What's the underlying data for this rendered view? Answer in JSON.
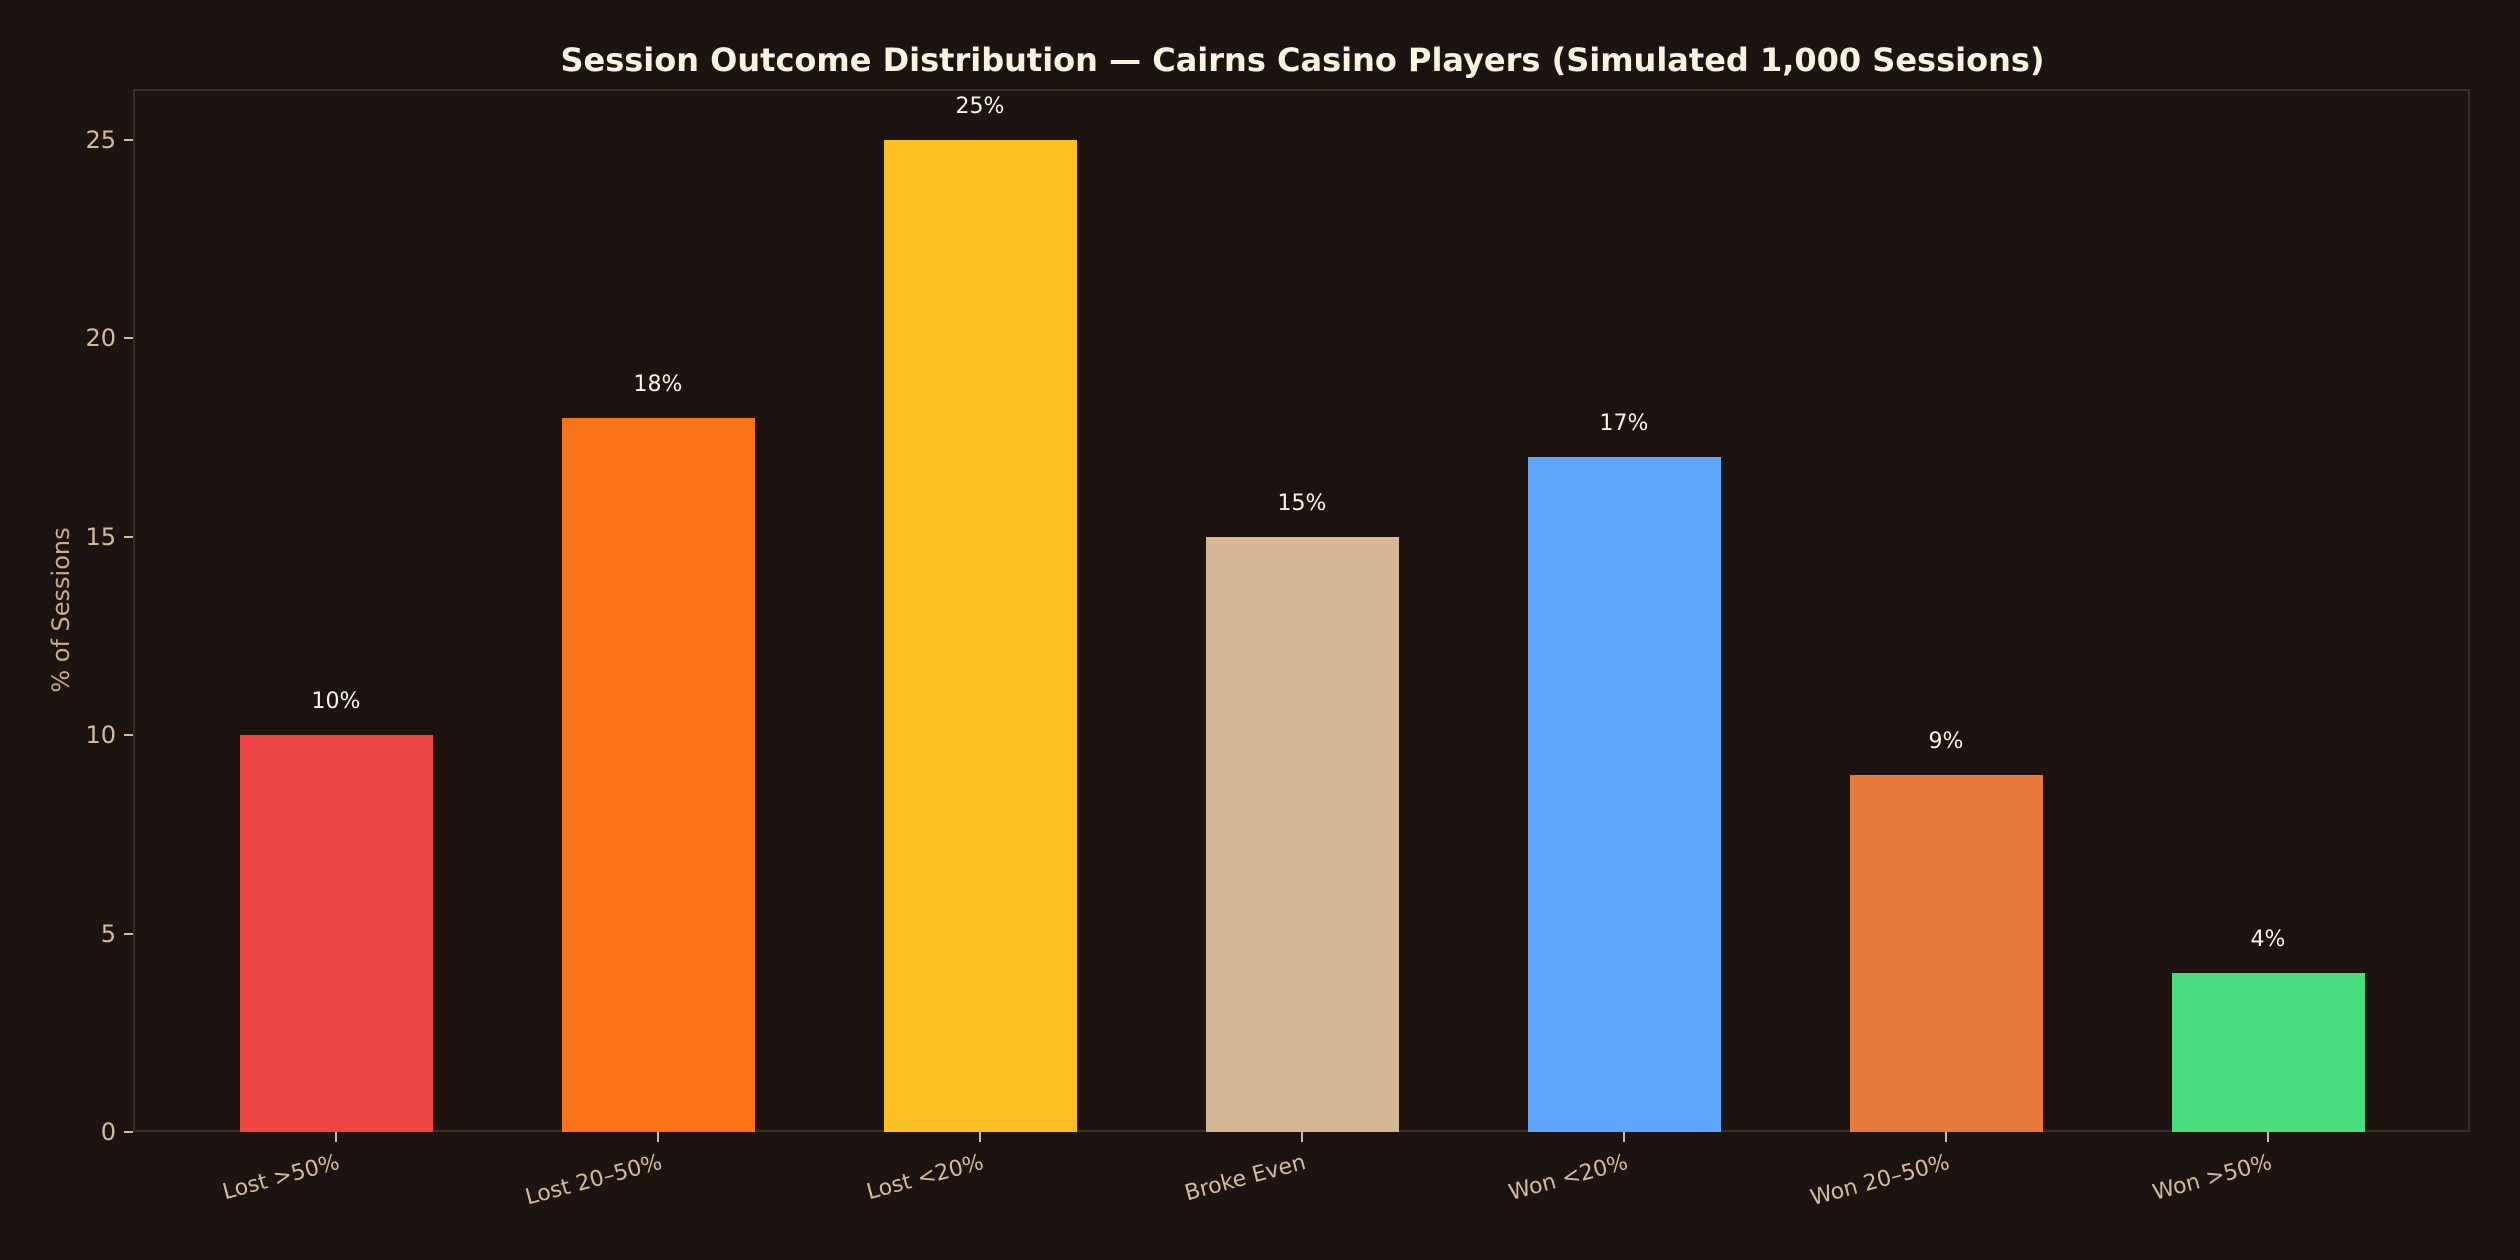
{
  "chart_data": {
    "type": "bar",
    "title": "Session Outcome Distribution — Cairns Casino Players (Simulated 1,000 Sessions)",
    "xlabel": "",
    "ylabel": "% of Sessions",
    "categories": [
      "Lost >50%",
      "Lost 20–50%",
      "Lost <20%",
      "Broke Even",
      "Won <20%",
      "Won 20–50%",
      "Won >50%"
    ],
    "values": [
      10,
      18,
      25,
      15,
      17,
      9,
      4
    ],
    "value_labels": [
      "10%",
      "18%",
      "25%",
      "15%",
      "17%",
      "9%",
      "4%"
    ],
    "colors": [
      "#ef4444",
      "#f97316",
      "#fbbf24",
      "#d4b896",
      "#60a5fa",
      "#e87b3c",
      "#4ade80"
    ],
    "ylim": [
      0,
      26.25
    ],
    "yticks": [
      "0",
      "5",
      "10",
      "15",
      "20",
      "25"
    ],
    "grid": false,
    "legend": null
  },
  "theme": {
    "background": "#1d1411",
    "title_color": "#fbf3df",
    "tick_color": "#d4bb9c",
    "spine_color": "#3d2d22"
  }
}
